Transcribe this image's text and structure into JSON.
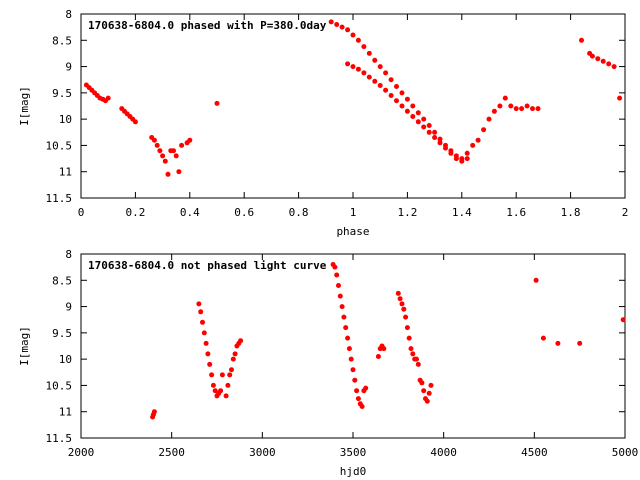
{
  "chart_data": [
    {
      "type": "scatter",
      "title": "170638-6804.0 phased with P=380.0day",
      "xlabel": "phase",
      "ylabel": "I[mag]",
      "xlim": [
        0,
        2
      ],
      "ylim": [
        8,
        11.5
      ],
      "y_inverted": true,
      "xticks": [
        "0",
        "0.2",
        "0.4",
        "0.6",
        "0.8",
        "1",
        "1.2",
        "1.4",
        "1.6",
        "1.8",
        "2"
      ],
      "yticks": [
        "8",
        "8.5",
        "9",
        "9.5",
        "10",
        "10.5",
        "11",
        "11.5"
      ],
      "grid": false,
      "marker_color": "#ff0000",
      "series": [
        {
          "x": [
            0.02,
            0.03,
            0.04,
            0.05,
            0.06,
            0.07,
            0.08,
            0.09,
            0.1,
            0.15,
            0.16,
            0.17,
            0.18,
            0.19,
            0.2,
            0.26,
            0.27,
            0.28,
            0.29,
            0.3,
            0.31,
            0.32,
            0.33,
            0.34,
            0.35,
            0.36,
            0.37,
            0.39,
            0.4,
            0.5,
            0.92,
            0.94,
            0.96,
            0.98,
            1.0,
            1.02,
            1.04,
            1.06,
            1.08,
            1.1,
            1.12,
            1.14,
            1.16,
            1.18,
            1.2,
            1.22,
            1.24,
            1.26,
            1.28,
            1.3,
            1.32,
            1.34,
            1.36,
            1.38,
            1.4,
            1.42,
            1.44,
            1.46,
            1.48,
            1.5,
            1.52,
            1.54,
            1.56,
            1.58,
            1.6,
            1.62,
            1.64,
            1.66,
            1.68,
            0.98,
            1.0,
            1.02,
            1.04,
            1.06,
            1.08,
            1.1,
            1.12,
            1.14,
            1.16,
            1.18,
            1.2,
            1.22,
            1.24,
            1.26,
            1.28,
            1.3,
            1.32,
            1.34,
            1.36,
            1.38,
            1.4,
            1.42,
            1.84,
            1.87,
            1.88,
            1.9,
            1.92,
            1.94,
            1.96,
            1.98
          ],
          "y": [
            9.35,
            9.4,
            9.45,
            9.5,
            9.55,
            9.6,
            9.62,
            9.65,
            9.6,
            9.8,
            9.85,
            9.9,
            9.95,
            10.0,
            10.05,
            10.35,
            10.4,
            10.5,
            10.6,
            10.7,
            10.8,
            11.05,
            10.6,
            10.6,
            10.7,
            11.0,
            10.5,
            10.45,
            10.4,
            9.7,
            8.15,
            8.2,
            8.25,
            8.3,
            8.4,
            8.5,
            8.62,
            8.75,
            8.88,
            9.0,
            9.12,
            9.25,
            9.38,
            9.5,
            9.62,
            9.75,
            9.88,
            10.0,
            10.12,
            10.25,
            10.38,
            10.5,
            10.6,
            10.7,
            10.75,
            10.65,
            10.5,
            10.4,
            10.2,
            10.0,
            9.85,
            9.75,
            9.6,
            9.75,
            9.8,
            9.8,
            9.75,
            9.8,
            9.8,
            8.95,
            9.0,
            9.05,
            9.12,
            9.2,
            9.28,
            9.36,
            9.45,
            9.55,
            9.65,
            9.75,
            9.85,
            9.95,
            10.05,
            10.15,
            10.25,
            10.35,
            10.45,
            10.55,
            10.65,
            10.75,
            10.8,
            10.75,
            8.5,
            8.75,
            8.8,
            8.85,
            8.9,
            8.95,
            9.0,
            9.6
          ]
        }
      ]
    },
    {
      "type": "scatter",
      "title": "170638-6804.0 not phased light curve",
      "xlabel": "hjd0",
      "ylabel": "I[mag]",
      "xlim": [
        2000,
        5000
      ],
      "ylim": [
        8,
        11.5
      ],
      "y_inverted": true,
      "xticks": [
        "2000",
        "2500",
        "3000",
        "3500",
        "4000",
        "4500",
        "5000"
      ],
      "yticks": [
        "8",
        "8.5",
        "9",
        "9.5",
        "10",
        "10.5",
        "11",
        "11.5"
      ],
      "grid": false,
      "marker_color": "#ff0000",
      "series": [
        {
          "x": [
            2395,
            2400,
            2405,
            2650,
            2660,
            2670,
            2680,
            2690,
            2700,
            2710,
            2720,
            2730,
            2740,
            2750,
            2760,
            2770,
            2780,
            2800,
            2810,
            2820,
            2830,
            2840,
            2850,
            2860,
            2870,
            2880,
            3390,
            3400,
            3410,
            3420,
            3430,
            3440,
            3450,
            3460,
            3470,
            3480,
            3490,
            3500,
            3510,
            3520,
            3530,
            3540,
            3550,
            3560,
            3570,
            3640,
            3650,
            3660,
            3670,
            3750,
            3760,
            3770,
            3780,
            3790,
            3800,
            3810,
            3820,
            3830,
            3840,
            3850,
            3860,
            3870,
            3880,
            3890,
            3900,
            3910,
            3920,
            3930,
            4510,
            4550,
            4630,
            4750,
            4990
          ],
          "y": [
            11.1,
            11.05,
            11.0,
            8.95,
            9.1,
            9.3,
            9.5,
            9.7,
            9.9,
            10.1,
            10.3,
            10.5,
            10.6,
            10.7,
            10.65,
            10.6,
            10.3,
            10.7,
            10.5,
            10.3,
            10.2,
            10.0,
            9.9,
            9.75,
            9.7,
            9.65,
            8.2,
            8.25,
            8.4,
            8.6,
            8.8,
            9.0,
            9.2,
            9.4,
            9.6,
            9.8,
            10.0,
            10.2,
            10.4,
            10.6,
            10.75,
            10.85,
            10.9,
            10.6,
            10.55,
            9.95,
            9.8,
            9.75,
            9.8,
            8.75,
            8.85,
            8.95,
            9.05,
            9.2,
            9.4,
            9.6,
            9.8,
            9.9,
            10.0,
            10.0,
            10.1,
            10.4,
            10.45,
            10.6,
            10.75,
            10.8,
            10.65,
            10.5,
            8.5,
            9.6,
            9.7,
            9.7,
            9.25
          ]
        }
      ]
    }
  ]
}
